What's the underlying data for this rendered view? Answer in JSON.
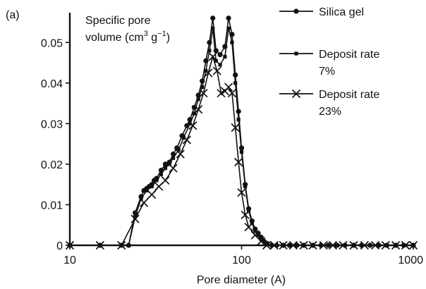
{
  "chart_data": {
    "type": "line",
    "panel_label": "(a)",
    "title": "",
    "ylabel_line1": "Specific pore",
    "ylabel_line2_prefix": "volume (cm",
    "ylabel_line2_sup1": "3",
    "ylabel_line2_mid": " g",
    "ylabel_line2_sup2": "−1",
    "ylabel_line2_suffix": ")",
    "xlabel": "Pore diameter (A)",
    "xscale": "log",
    "xlim": [
      10,
      1000
    ],
    "ylim": [
      0,
      0.057
    ],
    "x_ticks": [
      10,
      100,
      1000
    ],
    "x_tick_labels": [
      "10",
      "100",
      "1000"
    ],
    "y_ticks": [
      0,
      0.01,
      0.02,
      0.03,
      0.04,
      0.05
    ],
    "y_tick_labels": [
      "0",
      "0.01",
      "0.02",
      "0.03",
      "0.04",
      "0.05"
    ],
    "legend_position": "right",
    "series": [
      {
        "name": "Silica gel",
        "legend_lines": [
          "Silica gel"
        ],
        "marker": "circle",
        "points": [
          [
            10,
            0
          ],
          [
            15,
            0
          ],
          [
            20,
            0
          ],
          [
            22,
            0
          ],
          [
            24,
            0.008
          ],
          [
            26,
            0.012
          ],
          [
            27,
            0.0135
          ],
          [
            28,
            0.014
          ],
          [
            29,
            0.0145
          ],
          [
            30,
            0.015
          ],
          [
            31,
            0.016
          ],
          [
            32,
            0.0165
          ],
          [
            34,
            0.0185
          ],
          [
            36,
            0.02
          ],
          [
            38,
            0.0205
          ],
          [
            40,
            0.0225
          ],
          [
            42,
            0.024
          ],
          [
            45,
            0.027
          ],
          [
            48,
            0.0295
          ],
          [
            50,
            0.031
          ],
          [
            53,
            0.034
          ],
          [
            56,
            0.037
          ],
          [
            59,
            0.0405
          ],
          [
            62,
            0.0455
          ],
          [
            65,
            0.05
          ],
          [
            68,
            0.056
          ],
          [
            71,
            0.048
          ],
          [
            75,
            0.047
          ],
          [
            80,
            0.049
          ],
          [
            84,
            0.056
          ],
          [
            88,
            0.052
          ],
          [
            92,
            0.042
          ],
          [
            96,
            0.033
          ],
          [
            100,
            0.024
          ],
          [
            105,
            0.015
          ],
          [
            110,
            0.009
          ],
          [
            115,
            0.006
          ],
          [
            120,
            0.004
          ],
          [
            125,
            0.003
          ],
          [
            130,
            0.002
          ],
          [
            135,
            0.001
          ],
          [
            140,
            0.0005
          ],
          [
            150,
            0
          ],
          [
            160,
            0
          ],
          [
            175,
            0
          ],
          [
            190,
            0
          ],
          [
            210,
            0
          ],
          [
            230,
            0
          ],
          [
            260,
            0
          ],
          [
            290,
            0
          ],
          [
            320,
            0
          ],
          [
            360,
            0
          ],
          [
            400,
            0
          ],
          [
            450,
            0
          ],
          [
            500,
            0
          ],
          [
            560,
            0
          ],
          [
            630,
            0
          ],
          [
            700,
            0
          ],
          [
            790,
            0
          ],
          [
            880,
            0
          ],
          [
            1000,
            0
          ]
        ]
      },
      {
        "name": "Deposit rate 7%",
        "legend_lines": [
          "Deposit rate",
          "7%"
        ],
        "marker": "square",
        "points": [
          [
            10,
            0
          ],
          [
            15,
            0
          ],
          [
            20,
            0
          ],
          [
            22,
            0
          ],
          [
            24,
            0.007
          ],
          [
            26,
            0.0115
          ],
          [
            28,
            0.0135
          ],
          [
            30,
            0.0145
          ],
          [
            32,
            0.016
          ],
          [
            34,
            0.0175
          ],
          [
            36,
            0.019
          ],
          [
            38,
            0.02
          ],
          [
            40,
            0.0215
          ],
          [
            43,
            0.0235
          ],
          [
            46,
            0.0265
          ],
          [
            50,
            0.03
          ],
          [
            53,
            0.0325
          ],
          [
            56,
            0.036
          ],
          [
            59,
            0.039
          ],
          [
            62,
            0.043
          ],
          [
            65,
            0.048
          ],
          [
            68,
            0.0535
          ],
          [
            71,
            0.0455
          ],
          [
            75,
            0.0445
          ],
          [
            80,
            0.0465
          ],
          [
            84,
            0.0535
          ],
          [
            88,
            0.05
          ],
          [
            92,
            0.04
          ],
          [
            96,
            0.031
          ],
          [
            100,
            0.023
          ],
          [
            105,
            0.0145
          ],
          [
            110,
            0.0085
          ],
          [
            115,
            0.0055
          ],
          [
            120,
            0.0035
          ],
          [
            125,
            0.0025
          ],
          [
            130,
            0.0015
          ],
          [
            135,
            0.001
          ],
          [
            140,
            0.0005
          ],
          [
            150,
            0
          ],
          [
            175,
            0
          ],
          [
            210,
            0
          ],
          [
            260,
            0
          ],
          [
            320,
            0
          ],
          [
            400,
            0
          ],
          [
            500,
            0
          ],
          [
            630,
            0
          ],
          [
            790,
            0
          ],
          [
            1000,
            0
          ]
        ]
      },
      {
        "name": "Deposit rate 23%",
        "legend_lines": [
          "Deposit rate",
          "23%"
        ],
        "marker": "cross",
        "points": [
          [
            10,
            0
          ],
          [
            15,
            0
          ],
          [
            20,
            0
          ],
          [
            24,
            0.0065
          ],
          [
            27,
            0.0105
          ],
          [
            30,
            0.0125
          ],
          [
            33,
            0.0145
          ],
          [
            36,
            0.016
          ],
          [
            40,
            0.019
          ],
          [
            44,
            0.0225
          ],
          [
            48,
            0.026
          ],
          [
            52,
            0.0295
          ],
          [
            56,
            0.0335
          ],
          [
            60,
            0.0375
          ],
          [
            64,
            0.0425
          ],
          [
            68,
            0.0465
          ],
          [
            72,
            0.043
          ],
          [
            76,
            0.0375
          ],
          [
            80,
            0.038
          ],
          [
            84,
            0.039
          ],
          [
            88,
            0.0375
          ],
          [
            92,
            0.029
          ],
          [
            96,
            0.0205
          ],
          [
            100,
            0.013
          ],
          [
            105,
            0.0075
          ],
          [
            110,
            0.0045
          ],
          [
            120,
            0.0025
          ],
          [
            130,
            0.001
          ],
          [
            140,
            0
          ],
          [
            155,
            0
          ],
          [
            175,
            0
          ],
          [
            200,
            0
          ],
          [
            230,
            0
          ],
          [
            260,
            0
          ],
          [
            300,
            0
          ],
          [
            340,
            0
          ],
          [
            390,
            0
          ],
          [
            450,
            0
          ],
          [
            520,
            0
          ],
          [
            600,
            0
          ],
          [
            690,
            0
          ],
          [
            790,
            0
          ],
          [
            900,
            0
          ],
          [
            1000,
            0
          ]
        ]
      }
    ]
  }
}
